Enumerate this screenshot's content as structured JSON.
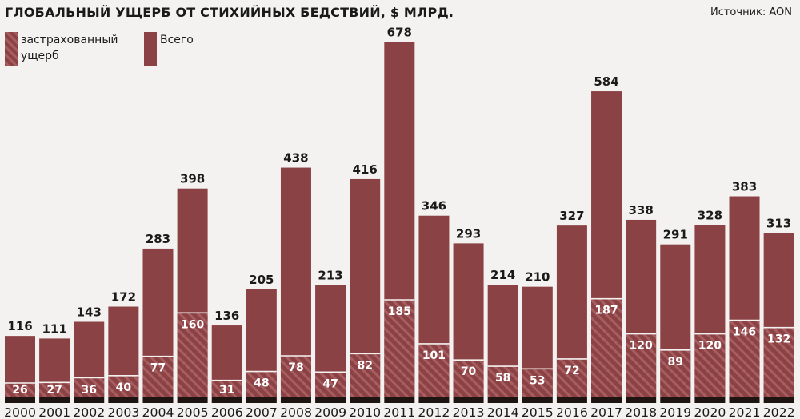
{
  "title": "ГЛОБАЛЬНЫЙ УЩЕРБ ОТ СТИХИЙНЫХ БЕДСТВИЙ, $ МЛРД.",
  "source": "Источник: AON",
  "colors": {
    "total": "#8b4245",
    "insured_stripe": "#a45a5c",
    "insured_base": "#8b4245",
    "axis": "#1e1412",
    "background": "#f4f2f0"
  },
  "chart_data": {
    "type": "bar",
    "grid": false,
    "legend_position": "top-left",
    "ylim": [
      0,
      700
    ],
    "categories": [
      "2000",
      "2001",
      "2002",
      "2003",
      "2004",
      "2005",
      "2006",
      "2007",
      "2008",
      "2009",
      "2010",
      "2011",
      "2012",
      "2013",
      "2014",
      "2015",
      "2016",
      "2017",
      "2018",
      "2019",
      "2020",
      "2021",
      "2022"
    ],
    "series": [
      {
        "name": "застрахованный ущерб",
        "pattern": "hatched",
        "values": [
          26,
          27,
          36,
          40,
          77,
          160,
          31,
          48,
          78,
          47,
          82,
          185,
          101,
          70,
          58,
          53,
          72,
          187,
          120,
          89,
          120,
          146,
          132
        ]
      },
      {
        "name": "Всего",
        "pattern": "solid",
        "values": [
          116,
          111,
          143,
          172,
          283,
          398,
          136,
          205,
          438,
          213,
          416,
          678,
          346,
          293,
          214,
          210,
          327,
          584,
          338,
          291,
          328,
          383,
          313
        ]
      }
    ],
    "legend_labels": [
      "застрахованный",
      "ущерб",
      "Всего"
    ]
  }
}
